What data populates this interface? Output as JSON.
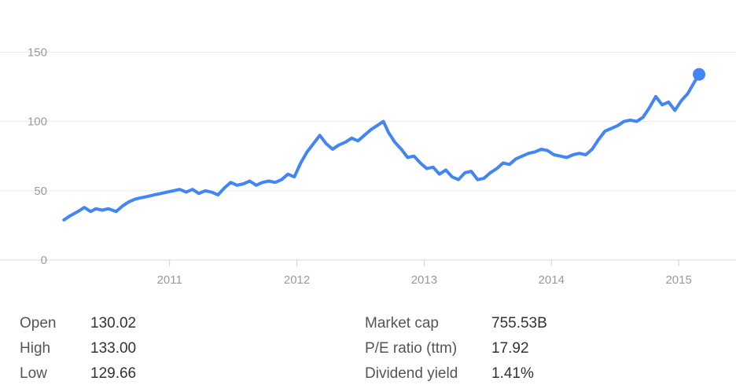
{
  "chart_data": {
    "type": "line",
    "title": "",
    "xlabel": "",
    "ylabel": "",
    "ylim": [
      0,
      165
    ],
    "y_ticks": [
      0,
      50,
      100,
      150
    ],
    "y_tick_labels": [
      "0",
      "50",
      "100",
      "150"
    ],
    "x_ticks": [
      2011,
      2012,
      2013,
      2014,
      2015
    ],
    "x_tick_labels": [
      "2011",
      "2012",
      "2013",
      "2014",
      "2015"
    ],
    "xlim": [
      2010.1,
      2015.45
    ],
    "grid": true,
    "line_color": "#4285f4",
    "series": [
      {
        "x": [
          2010.17,
          2010.22,
          2010.28,
          2010.33,
          2010.38,
          2010.42,
          2010.47,
          2010.52,
          2010.58,
          2010.63,
          2010.68,
          2010.73,
          2010.78,
          2010.83,
          2010.88,
          2010.93,
          2010.98,
          2011.03,
          2011.08,
          2011.13,
          2011.18,
          2011.23,
          2011.28,
          2011.33,
          2011.38,
          2011.43,
          2011.48,
          2011.53,
          2011.58,
          2011.63,
          2011.68,
          2011.73,
          2011.78,
          2011.83,
          2011.88,
          2011.93,
          2011.98,
          2012.03,
          2012.08,
          2012.13,
          2012.18,
          2012.23,
          2012.28,
          2012.33,
          2012.38,
          2012.43,
          2012.48,
          2012.53,
          2012.58,
          2012.63,
          2012.68,
          2012.72,
          2012.77,
          2012.82,
          2012.87,
          2012.92,
          2012.97,
          2013.02,
          2013.07,
          2013.12,
          2013.17,
          2013.22,
          2013.27,
          2013.32,
          2013.37,
          2013.42,
          2013.47,
          2013.52,
          2013.57,
          2013.62,
          2013.67,
          2013.72,
          2013.77,
          2013.82,
          2013.87,
          2013.92,
          2013.97,
          2014.02,
          2014.07,
          2014.12,
          2014.17,
          2014.22,
          2014.27,
          2014.32,
          2014.37,
          2014.42,
          2014.47,
          2014.52,
          2014.57,
          2014.62,
          2014.67,
          2014.72,
          2014.77,
          2014.82,
          2014.87,
          2014.92,
          2014.97,
          2015.02,
          2015.07,
          2015.12,
          2015.16
        ],
        "y": [
          29,
          32,
          35,
          38,
          35,
          37,
          36,
          37,
          35,
          39,
          42,
          44,
          45,
          46,
          47,
          48,
          49,
          50,
          51,
          49,
          51,
          48,
          50,
          49,
          47,
          52,
          56,
          54,
          55,
          57,
          54,
          56,
          57,
          56,
          58,
          62,
          60,
          70,
          78,
          84,
          90,
          84,
          80,
          83,
          85,
          88,
          86,
          90,
          94,
          97,
          100,
          92,
          85,
          80,
          74,
          75,
          70,
          66,
          67,
          62,
          65,
          60,
          58,
          63,
          64,
          58,
          59,
          63,
          66,
          70,
          69,
          73,
          75,
          77,
          78,
          80,
          79,
          76,
          75,
          74,
          76,
          77,
          76,
          80,
          87,
          93,
          95,
          97,
          100,
          101,
          100,
          103,
          110,
          118,
          112,
          114,
          108,
          115,
          120,
          128,
          134
        ]
      }
    ],
    "last_point": {
      "x": 2015.16,
      "y": 134
    }
  },
  "stats": {
    "left": [
      {
        "label": "Open",
        "value": "130.02"
      },
      {
        "label": "High",
        "value": "133.00"
      },
      {
        "label": "Low",
        "value": "129.66"
      }
    ],
    "right": [
      {
        "label": "Market cap",
        "value": "755.53B"
      },
      {
        "label": "P/E ratio (ttm)",
        "value": "17.92"
      },
      {
        "label": "Dividend yield",
        "value": "1.41%"
      }
    ]
  }
}
